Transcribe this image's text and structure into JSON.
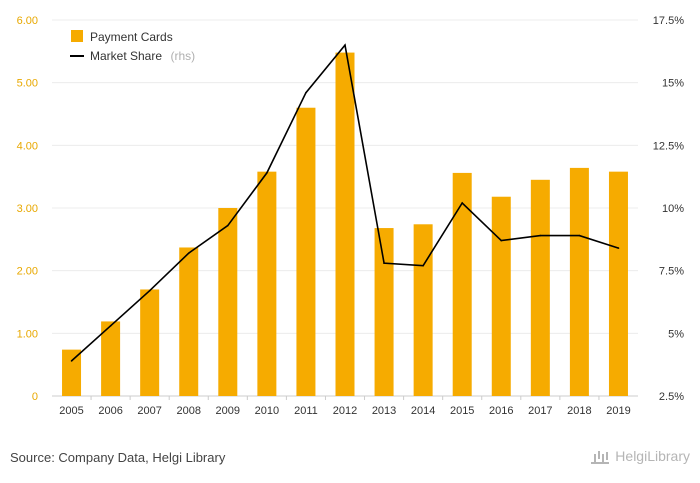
{
  "chart_data": {
    "type": "bar+line",
    "categories": [
      "2005",
      "2006",
      "2007",
      "2008",
      "2009",
      "2010",
      "2011",
      "2012",
      "2013",
      "2014",
      "2015",
      "2016",
      "2017",
      "2018",
      "2019"
    ],
    "series": [
      {
        "name": "Payment Cards",
        "type": "bar",
        "axis": "left",
        "color": "#f6ab00",
        "values": [
          0.74,
          1.19,
          1.7,
          2.37,
          3.0,
          3.58,
          4.6,
          5.48,
          2.68,
          2.74,
          3.56,
          3.18,
          3.45,
          3.64,
          3.58
        ]
      },
      {
        "name": "Market Share",
        "suffix": "(rhs)",
        "type": "line",
        "axis": "right",
        "color": "#000000",
        "values": [
          3.9,
          5.3,
          6.7,
          8.2,
          9.3,
          11.4,
          14.6,
          16.5,
          7.8,
          7.7,
          10.2,
          8.7,
          8.9,
          8.9,
          8.4
        ]
      }
    ],
    "ylim_left": [
      0,
      6
    ],
    "yticks_left": [
      "0",
      "1.00",
      "2.00",
      "3.00",
      "4.00",
      "5.00",
      "6.00"
    ],
    "ylim_right": [
      2.5,
      17.5
    ],
    "yticks_right": [
      "2.5%",
      "5%",
      "7.5%",
      "10%",
      "12.5%",
      "15%",
      "17.5%"
    ],
    "grid": true,
    "legend": "top-left"
  },
  "footer": {
    "source": "Source: Company Data, Helgi Library",
    "logo": "HelgiLibrary"
  }
}
